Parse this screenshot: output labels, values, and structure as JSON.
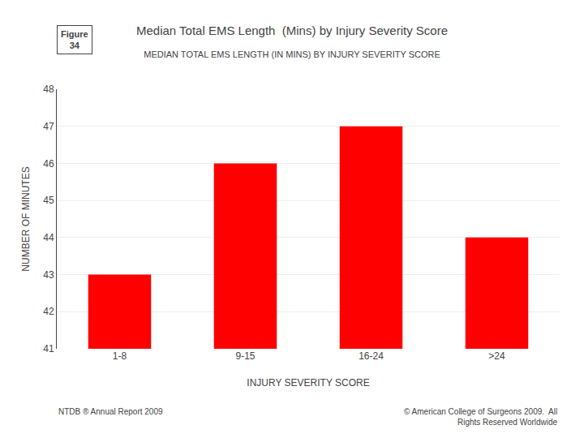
{
  "chart_data": {
    "type": "bar",
    "title": "Median Total EMS Length  (Mins) by Injury Severity Score",
    "subtitle": "MEDIAN TOTAL EMS LENGTH (IN MINS) BY INJURY SEVERITY SCORE",
    "x_label": "INJURY SEVERITY SCORE",
    "y_label": "NUMBER OF MINUTES",
    "categories": [
      "1-8",
      "9-15",
      "16-24",
      ">24"
    ],
    "values": [
      43,
      46,
      47,
      44
    ],
    "color": "#FF0000",
    "ylim": [
      41,
      48
    ],
    "yticks": [
      41,
      42,
      43,
      44,
      45,
      46,
      47,
      48
    ],
    "grid": true,
    "annotations": [
      "Figure\n34",
      "NTDB ® Annual Report 2009",
      "© American College of Surgeons 2009.  All\nRights Reserved Worldwide"
    ]
  }
}
